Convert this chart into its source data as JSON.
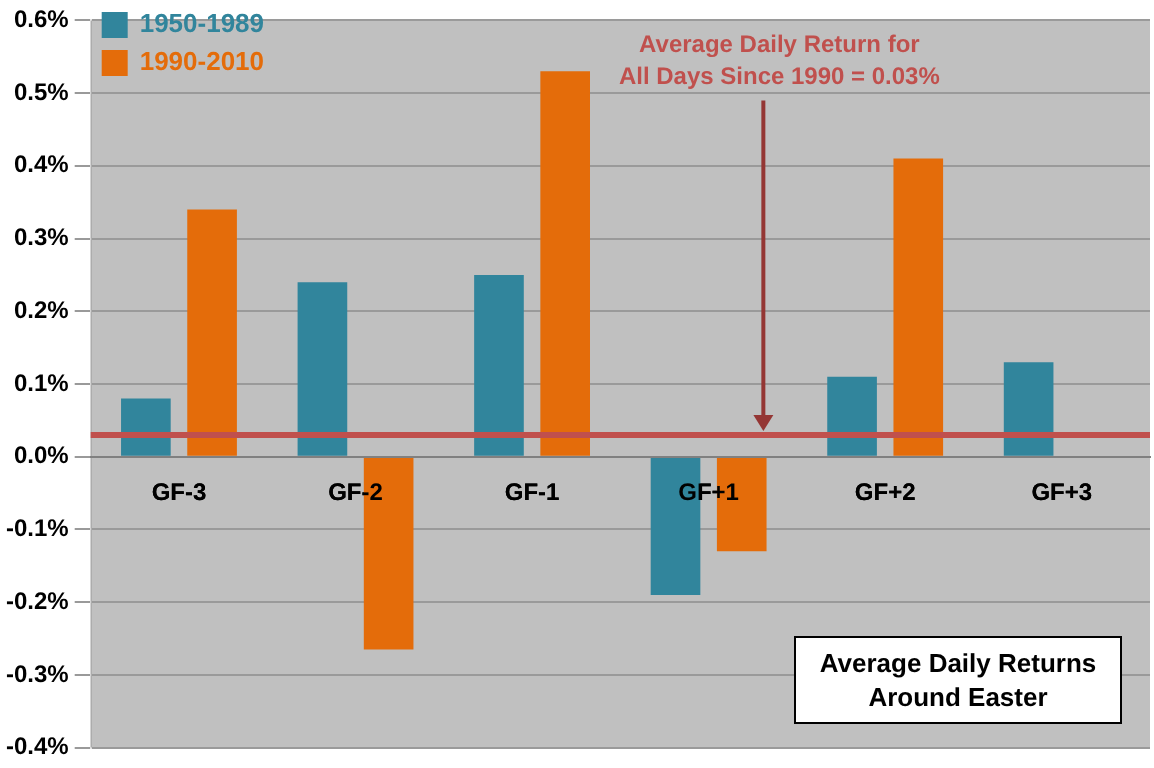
{
  "chart_data": {
    "type": "bar",
    "title": "Average Daily Returns Around Easter",
    "categories": [
      "GF-3",
      "GF-2",
      "GF-1",
      "GF+1",
      "GF+2",
      "GF+3"
    ],
    "series": [
      {
        "name": "1950-1989",
        "color": "#31859c",
        "values": [
          0.08,
          0.24,
          0.25,
          -0.19,
          0.11,
          0.13
        ]
      },
      {
        "name": "1990-2010",
        "color": "#e46c0a",
        "values": [
          0.34,
          -0.265,
          0.53,
          -0.13,
          0.41,
          0
        ]
      }
    ],
    "ylim": [
      -0.4,
      0.6
    ],
    "yticks": [
      {
        "value": -0.4,
        "label": "-0.4%"
      },
      {
        "value": -0.3,
        "label": "-0.3%"
      },
      {
        "value": -0.2,
        "label": "-0.2%"
      },
      {
        "value": -0.1,
        "label": "-0.1%"
      },
      {
        "value": 0,
        "label": "0.0%"
      },
      {
        "value": 0.1,
        "label": "0.1%"
      },
      {
        "value": 0.2,
        "label": "0.2%"
      },
      {
        "value": 0.3,
        "label": "0.3%"
      },
      {
        "value": 0.4,
        "label": "0.4%"
      },
      {
        "value": 0.5,
        "label": "0.5%"
      },
      {
        "value": 0.6,
        "label": "0.6%"
      }
    ],
    "ref_lines": [
      {
        "axis": "y",
        "value": 0.03,
        "label": "Average Daily Return for All Days Since 1990 = 0.03%",
        "color": "#c0504d"
      }
    ],
    "grid": "y",
    "legend": "top left"
  }
}
